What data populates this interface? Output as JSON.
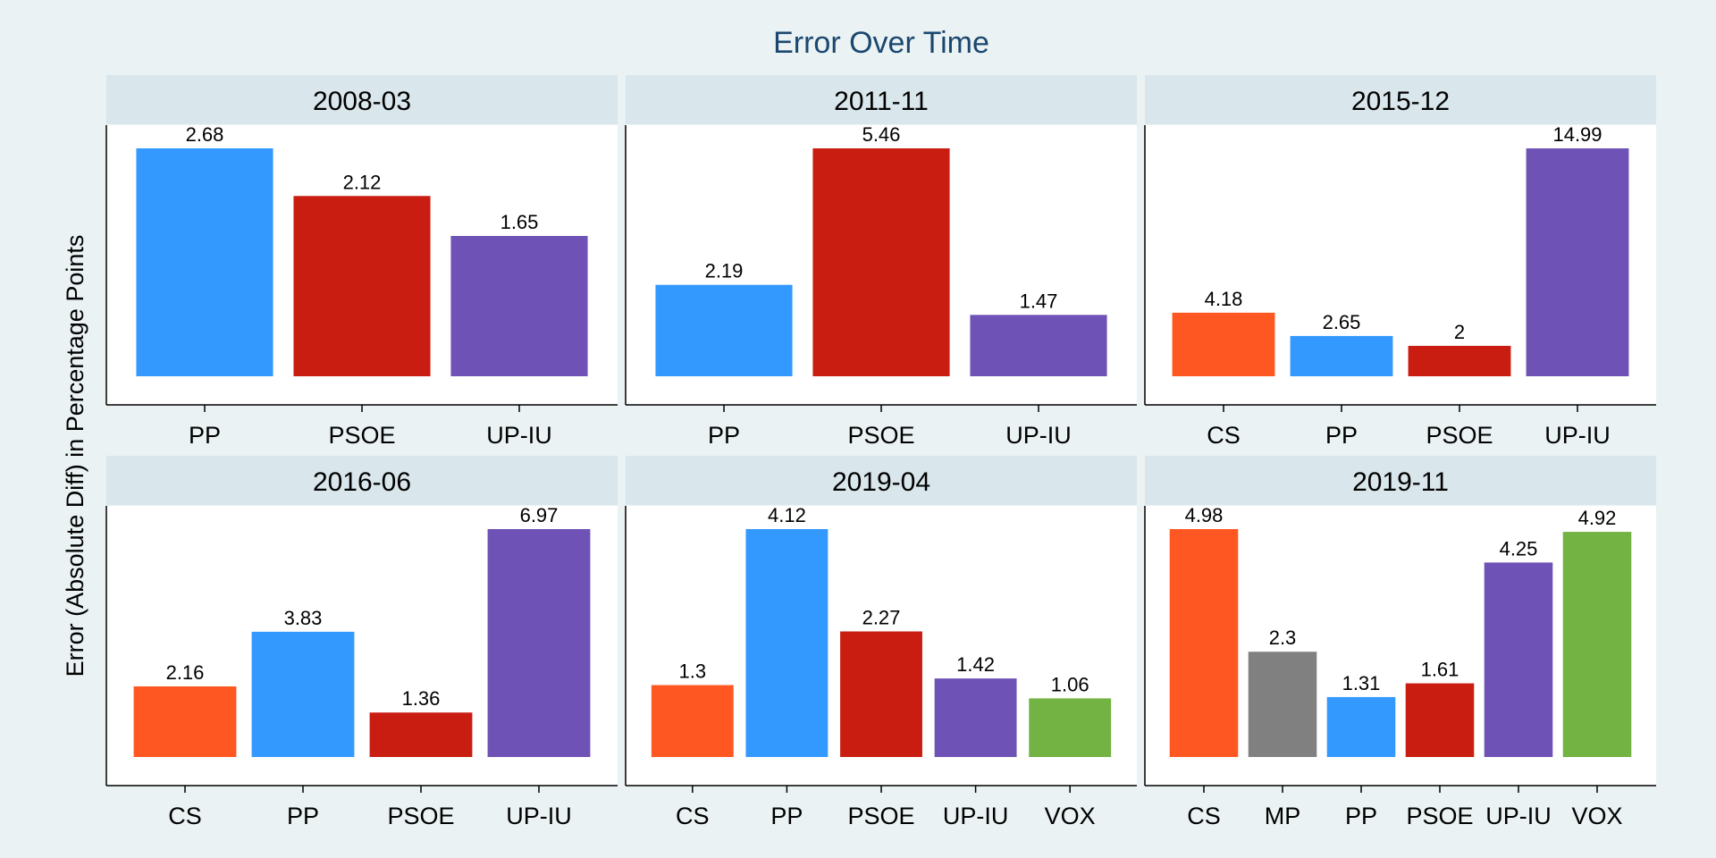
{
  "chart_data": {
    "type": "bar",
    "title": "Error Over Time",
    "ylabel": "Error (Absolute Diff) in Percentage Points",
    "xlabel": "",
    "grid": false,
    "legend": "none",
    "party_colors": {
      "CS": "#ff5722",
      "MP": "#808080",
      "PP": "#3399ff",
      "PSOE": "#c91d12",
      "UP-IU": "#6f52b5",
      "VOX": "#72b344"
    },
    "panels": [
      {
        "label": "2008-03",
        "categories": [
          "PP",
          "PSOE",
          "UP-IU"
        ],
        "values": [
          2.68,
          2.12,
          1.65
        ],
        "value_labels": [
          "2.68",
          "2.12",
          "1.65"
        ]
      },
      {
        "label": "2011-11",
        "categories": [
          "PP",
          "PSOE",
          "UP-IU"
        ],
        "values": [
          2.19,
          5.46,
          1.47
        ],
        "value_labels": [
          "2.19",
          "5.46",
          "1.47"
        ]
      },
      {
        "label": "2015-12",
        "categories": [
          "CS",
          "PP",
          "PSOE",
          "UP-IU"
        ],
        "values": [
          4.18,
          2.65,
          2,
          14.99
        ],
        "value_labels": [
          "4.18",
          "2.65",
          "2",
          "14.99"
        ]
      },
      {
        "label": "2016-06",
        "categories": [
          "CS",
          "PP",
          "PSOE",
          "UP-IU"
        ],
        "values": [
          2.16,
          3.83,
          1.36,
          6.97
        ],
        "value_labels": [
          "2.16",
          "3.83",
          "1.36",
          "6.97"
        ]
      },
      {
        "label": "2019-04",
        "categories": [
          "CS",
          "PP",
          "PSOE",
          "UP-IU",
          "VOX"
        ],
        "values": [
          1.3,
          4.12,
          2.27,
          1.42,
          1.06
        ],
        "value_labels": [
          "1.3",
          "4.12",
          "2.27",
          "1.42",
          "1.06"
        ]
      },
      {
        "label": "2019-11",
        "categories": [
          "CS",
          "MP",
          "PP",
          "PSOE",
          "UP-IU",
          "VOX"
        ],
        "values": [
          4.98,
          2.3,
          1.31,
          1.61,
          4.25,
          4.92
        ],
        "value_labels": [
          "4.98",
          "2.3",
          "1.31",
          "1.61",
          "4.25",
          "4.92"
        ]
      }
    ]
  }
}
